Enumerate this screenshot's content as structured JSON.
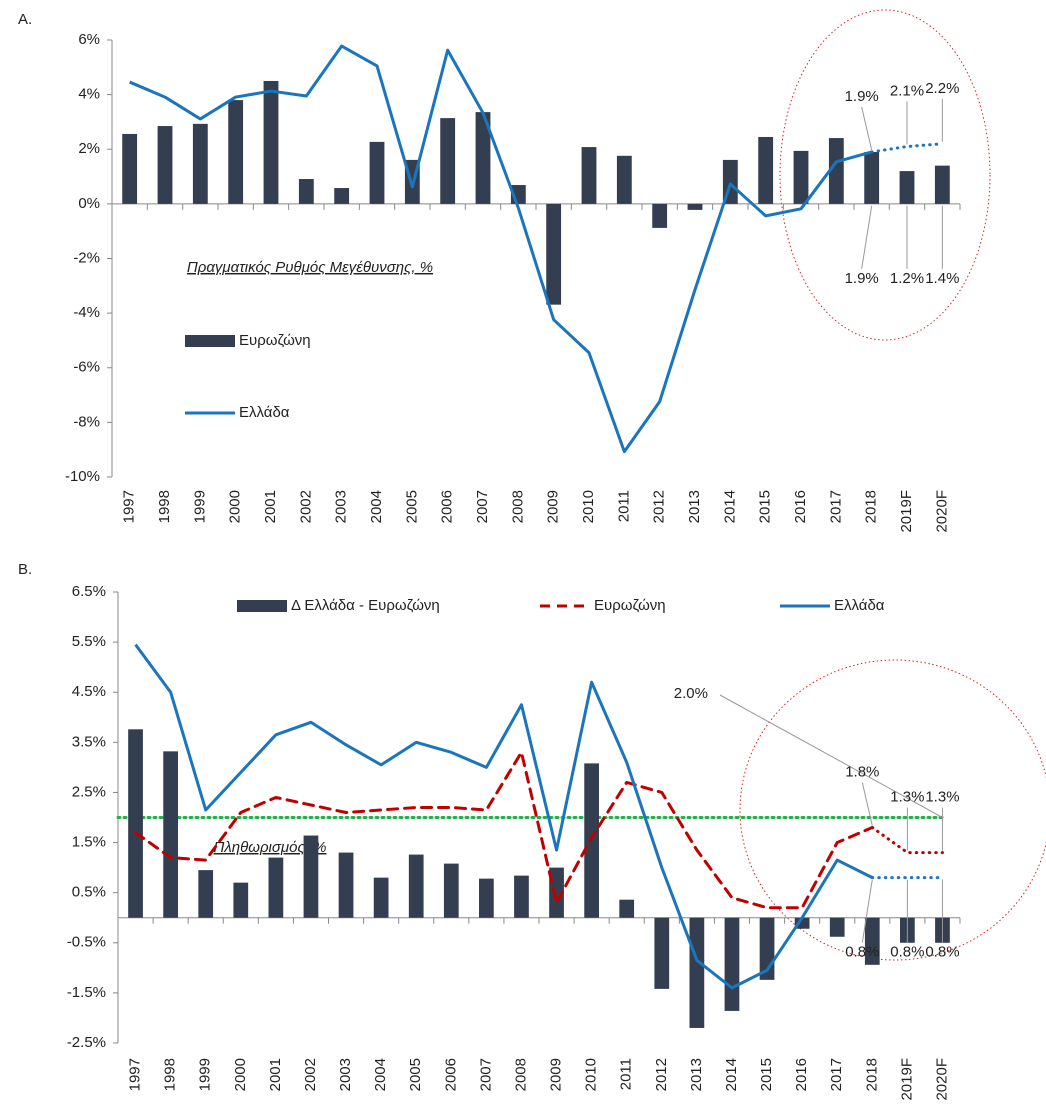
{
  "chart_data": [
    {
      "type": "combo",
      "panel_label": "A.",
      "note": "Πραγματικός Ρυθμός Μεγέθυνσης, %",
      "legend": "center-left",
      "categories": [
        "1997",
        "1998",
        "1999",
        "2000",
        "2001",
        "2002",
        "2003",
        "2004",
        "2005",
        "2006",
        "2007",
        "2008",
        "2009",
        "2010",
        "2011",
        "2012",
        "2013",
        "2014",
        "2015",
        "2016",
        "2017",
        "2018",
        "2019F",
        "2020F"
      ],
      "ylim": [
        -10,
        6
      ],
      "yticks": [
        {
          "value": -10,
          "label": "-10%"
        },
        {
          "value": -8,
          "label": "-8%"
        },
        {
          "value": -6,
          "label": "-6%"
        },
        {
          "value": -4,
          "label": "-4%"
        },
        {
          "value": -2,
          "label": "-2%"
        },
        {
          "value": 0,
          "label": "0%"
        },
        {
          "value": 2,
          "label": "2%"
        },
        {
          "value": 4,
          "label": "4%"
        },
        {
          "value": 6,
          "label": "6%"
        }
      ],
      "series": [
        {
          "name": "Ευρωζώνη",
          "type": "bar",
          "color": "#333f50",
          "label_position": "below",
          "values": [
            2.56,
            2.85,
            2.93,
            3.8,
            4.5,
            0.91,
            0.58,
            2.27,
            1.61,
            3.14,
            3.36,
            0.69,
            -3.69,
            2.08,
            1.76,
            -0.88,
            -0.22,
            1.61,
            2.45,
            1.94,
            2.41,
            1.9,
            1.2,
            1.4
          ],
          "value_labels": [
            null,
            null,
            null,
            null,
            null,
            null,
            null,
            null,
            null,
            null,
            null,
            null,
            null,
            null,
            null,
            null,
            null,
            null,
            null,
            null,
            null,
            "1.9%",
            "1.2%",
            "1.4%"
          ]
        },
        {
          "name": "Ελλάδα",
          "type": "line",
          "color": "#1a75bc",
          "label_position": "above",
          "values": [
            4.46,
            3.91,
            3.11,
            3.91,
            4.13,
            3.95,
            5.78,
            5.05,
            0.62,
            5.63,
            3.33,
            -0.15,
            -4.24,
            -5.45,
            -9.07,
            -7.24,
            -3.14,
            0.73,
            -0.44,
            -0.18,
            1.54,
            1.9,
            2.1,
            2.2
          ],
          "value_labels": [
            null,
            null,
            null,
            null,
            null,
            null,
            null,
            null,
            null,
            null,
            null,
            null,
            null,
            null,
            null,
            null,
            null,
            null,
            null,
            null,
            null,
            "1.9%",
            "2.1%",
            "2.2%"
          ]
        }
      ]
    },
    {
      "type": "combo",
      "panel_label": "B.",
      "note": "Πληθωρισμός, %",
      "legend": "top",
      "categories": [
        "1997",
        "1998",
        "1999",
        "2000",
        "2001",
        "2002",
        "2003",
        "2004",
        "2005",
        "2006",
        "2007",
        "2008",
        "2009",
        "2010",
        "2011",
        "2012",
        "2013",
        "2014",
        "2015",
        "2016",
        "2017",
        "2018",
        "2019F",
        "2020F"
      ],
      "ylim": [
        -2.5,
        6.5
      ],
      "yticks": [
        {
          "value": -2.5,
          "label": "-2.5%"
        },
        {
          "value": -1.5,
          "label": "-1.5%"
        },
        {
          "value": -0.5,
          "label": "-0.5%"
        },
        {
          "value": 0.5,
          "label": "0.5%"
        },
        {
          "value": 1.5,
          "label": "1.5%"
        },
        {
          "value": 2.5,
          "label": "2.5%"
        },
        {
          "value": 3.5,
          "label": "3.5%"
        },
        {
          "value": 4.5,
          "label": "4.5%"
        },
        {
          "value": 5.5,
          "label": "5.5%"
        },
        {
          "value": 6.5,
          "label": "6.5%"
        }
      ],
      "reference_line": {
        "value": 2,
        "label": "2.0%",
        "color": "#22b14c"
      },
      "series": [
        {
          "name": "Δ Ελλάδα - Ευρωζώνη",
          "type": "bar",
          "color": "#333f50",
          "values": [
            3.76,
            3.32,
            0.95,
            0.7,
            1.2,
            1.64,
            1.3,
            0.8,
            1.26,
            1.08,
            0.78,
            0.84,
            1.0,
            3.08,
            0.36,
            -1.42,
            -2.2,
            -1.86,
            -1.24,
            -0.22,
            -0.38,
            -0.94,
            -0.5,
            -0.5
          ]
        },
        {
          "name": "Ευρωζώνη",
          "type": "line",
          "color": "#c00000",
          "dash": "dashed",
          "label_position": "above",
          "values": [
            1.7,
            1.2,
            1.15,
            2.1,
            2.4,
            2.25,
            2.1,
            2.15,
            2.2,
            2.2,
            2.15,
            3.3,
            0.3,
            1.6,
            2.7,
            2.5,
            1.35,
            0.4,
            0.2,
            0.2,
            1.5,
            1.8,
            1.3,
            1.3
          ],
          "value_labels": [
            null,
            null,
            null,
            null,
            null,
            null,
            null,
            null,
            null,
            null,
            null,
            null,
            null,
            null,
            null,
            null,
            null,
            null,
            null,
            null,
            null,
            "1.8%",
            "1.3%",
            "1.3%"
          ]
        },
        {
          "name": "Ελλάδα",
          "type": "line",
          "color": "#1a75bc",
          "label_position": "below",
          "values": [
            5.45,
            4.5,
            2.15,
            2.9,
            3.65,
            3.9,
            3.45,
            3.05,
            3.5,
            3.3,
            3.0,
            4.25,
            1.35,
            4.7,
            3.1,
            1.0,
            -0.85,
            -1.4,
            -1.05,
            0.0,
            1.15,
            0.8,
            0.8,
            0.8
          ],
          "value_labels": [
            null,
            null,
            null,
            null,
            null,
            null,
            null,
            null,
            null,
            null,
            null,
            null,
            null,
            null,
            null,
            null,
            null,
            null,
            null,
            null,
            null,
            "0.8%",
            "0.8%",
            "0.8%"
          ]
        }
      ]
    }
  ]
}
